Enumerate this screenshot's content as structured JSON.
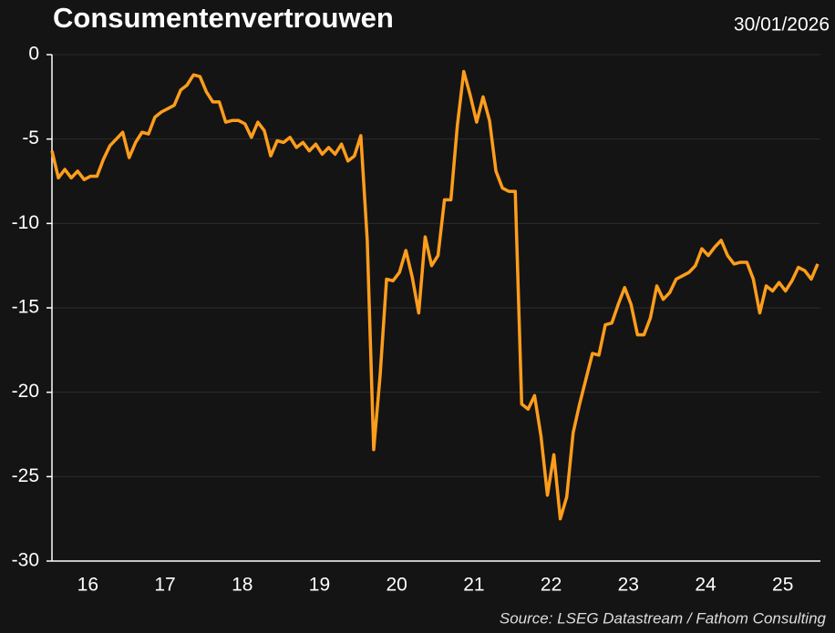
{
  "chart_data": {
    "type": "line",
    "title": "Consumentenvertrouwen",
    "date": "30/01/2026",
    "source": "Source: LSEG Datastream / Fathom Consulting",
    "categories": [
      null,
      null,
      null,
      null,
      null,
      null,
      "16",
      null,
      null,
      null,
      null,
      null,
      null,
      null,
      null,
      null,
      null,
      null,
      "17",
      null,
      null,
      null,
      null,
      null,
      null,
      null,
      null,
      null,
      null,
      null,
      "18",
      null,
      null,
      null,
      null,
      null,
      null,
      null,
      null,
      null,
      null,
      null,
      "19",
      null,
      null,
      null,
      null,
      null,
      null,
      null,
      null,
      null,
      null,
      null,
      "20",
      null,
      null,
      null,
      null,
      null,
      null,
      null,
      null,
      null,
      null,
      null,
      "21",
      null,
      null,
      null,
      null,
      null,
      null,
      null,
      null,
      null,
      null,
      null,
      "22",
      null,
      null,
      null,
      null,
      null,
      null,
      null,
      null,
      null,
      null,
      null,
      "23",
      null,
      null,
      null,
      null,
      null,
      null,
      null,
      null,
      null,
      null,
      null,
      "24",
      null,
      null,
      null,
      null,
      null,
      null,
      null,
      null,
      null,
      null,
      null,
      "25",
      null,
      null,
      null,
      null,
      null
    ],
    "series": [
      {
        "name": "Consumentenvertrouwen",
        "color": "#ff9d1c",
        "values": [
          -5.7,
          -7.3,
          -6.8,
          -7.3,
          -6.9,
          -7.4,
          -7.2,
          -7.2,
          -6.2,
          -5.4,
          -5.0,
          -4.6,
          -6.1,
          -5.2,
          -4.6,
          -4.7,
          -3.7,
          -3.4,
          -3.2,
          -3.0,
          -2.1,
          -1.8,
          -1.2,
          -1.3,
          -2.2,
          -2.8,
          -2.8,
          -4.0,
          -3.9,
          -3.9,
          -4.1,
          -4.9,
          -4.0,
          -4.5,
          -6.0,
          -5.1,
          -5.2,
          -4.9,
          -5.5,
          -5.2,
          -5.7,
          -5.3,
          -5.9,
          -5.5,
          -5.9,
          -5.3,
          -6.3,
          -6.0,
          -4.8,
          -11.0,
          -23.4,
          -19.0,
          -13.3,
          -13.4,
          -12.9,
          -11.6,
          -13.2,
          -15.3,
          -10.8,
          -12.5,
          -11.9,
          -8.6,
          -8.6,
          -4.2,
          -1.0,
          -2.4,
          -4.0,
          -2.5,
          -3.9,
          -6.9,
          -7.9,
          -8.1,
          -8.1,
          -20.7,
          -21.0,
          -20.2,
          -22.6,
          -26.1,
          -23.7,
          -27.5,
          -26.2,
          -22.4,
          -20.7,
          -19.2,
          -17.7,
          -17.8,
          -16.0,
          -15.9,
          -14.8,
          -13.8,
          -14.8,
          -16.6,
          -16.6,
          -15.6,
          -13.7,
          -14.5,
          -14.1,
          -13.3,
          -13.1,
          -12.9,
          -12.5,
          -11.5,
          -11.9,
          -11.4,
          -11.0,
          -11.9,
          -12.4,
          -12.3,
          -12.3,
          -13.3,
          -15.3,
          -13.7,
          -14.0,
          -13.5,
          -14.0,
          -13.4,
          -12.6,
          -12.8,
          -13.3,
          -12.4
        ]
      }
    ],
    "ylim": [
      -30,
      0
    ],
    "yticks": [
      0,
      -5,
      -10,
      -15,
      -20,
      -25,
      -30
    ],
    "grid": true
  }
}
